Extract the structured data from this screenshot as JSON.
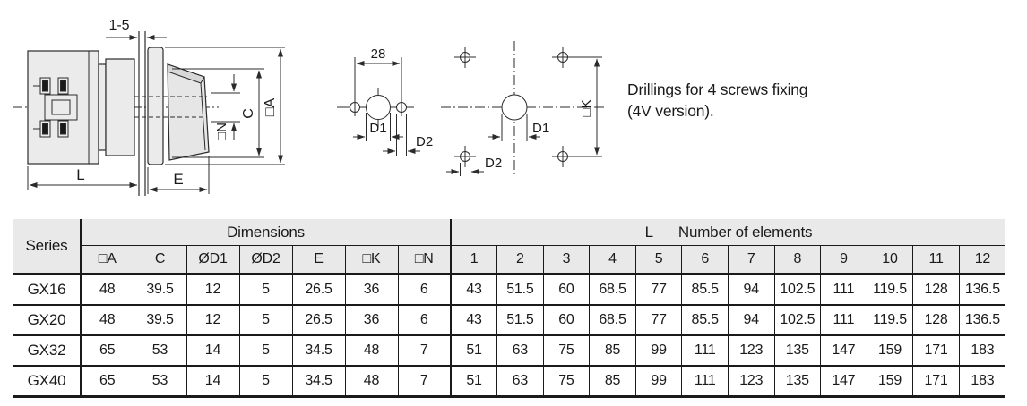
{
  "colors": {
    "line_drawing": "#2b2b2b",
    "line_table": "#1a1a1a",
    "header_bg": "#e9e9e9",
    "part_fill": "#ebebeb",
    "part_shade": "#d8d8d8",
    "text": "#1a1a1a"
  },
  "note": {
    "line1": "Drillings for 4 screws fixing",
    "line2": "(4V version)."
  },
  "side_view": {
    "dim_panel": "1-5",
    "dim_l": "L",
    "dim_e": "E",
    "dim_a": "□A",
    "dim_c": "C",
    "dim_n": "□N"
  },
  "drill_3hole": {
    "dim_span": "28",
    "dim_d1": "D1",
    "dim_d2": "D2"
  },
  "drill_4v": {
    "dim_k": "□K",
    "dim_d1": "D1",
    "dim_d2": "D2"
  },
  "table": {
    "series_header": "Series",
    "dimensions_header": "Dimensions",
    "l_label": "L",
    "elements_label": "Number of elements",
    "dim_columns": [
      "□A",
      "C",
      "ØD1",
      "ØD2",
      "E",
      "□K",
      "□N"
    ],
    "element_columns": [
      "1",
      "2",
      "3",
      "4",
      "5",
      "6",
      "7",
      "8",
      "9",
      "10",
      "11",
      "12"
    ],
    "rows": [
      {
        "series": "GX16",
        "dims": [
          "48",
          "39.5",
          "12",
          "5",
          "26.5",
          "36",
          "6"
        ],
        "elements": [
          "43",
          "51.5",
          "60",
          "68.5",
          "77",
          "85.5",
          "94",
          "102.5",
          "111",
          "119.5",
          "128",
          "136.5"
        ]
      },
      {
        "series": "GX20",
        "dims": [
          "48",
          "39.5",
          "12",
          "5",
          "26.5",
          "36",
          "6"
        ],
        "elements": [
          "43",
          "51.5",
          "60",
          "68.5",
          "77",
          "85.5",
          "94",
          "102.5",
          "111",
          "119.5",
          "128",
          "136.5"
        ]
      },
      {
        "series": "GX32",
        "dims": [
          "65",
          "53",
          "14",
          "5",
          "34.5",
          "48",
          "7"
        ],
        "elements": [
          "51",
          "63",
          "75",
          "85",
          "99",
          "111",
          "123",
          "135",
          "147",
          "159",
          "171",
          "183"
        ]
      },
      {
        "series": "GX40",
        "dims": [
          "65",
          "53",
          "14",
          "5",
          "34.5",
          "48",
          "7"
        ],
        "elements": [
          "51",
          "63",
          "75",
          "85",
          "99",
          "111",
          "123",
          "135",
          "147",
          "159",
          "171",
          "183"
        ]
      }
    ]
  }
}
